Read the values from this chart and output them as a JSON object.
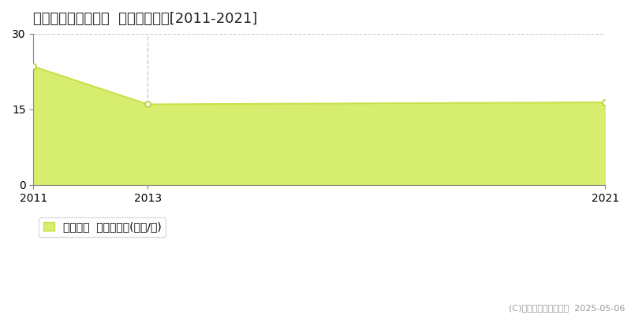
{
  "title": "各務原市蘇原早苗町  土地価格推移[2011-2021]",
  "years": [
    2011,
    2013,
    2021
  ],
  "values": [
    23.5,
    16.0,
    16.4
  ],
  "xlim": [
    2011,
    2021
  ],
  "ylim": [
    0,
    30
  ],
  "yticks": [
    0,
    15,
    30
  ],
  "xticks": [
    2011,
    2013,
    2021
  ],
  "vline_x": 2013,
  "line_color": "#c8e04a",
  "fill_color": "#d6ed6e",
  "fill_alpha": 1.0,
  "marker_color": "#ffffff",
  "marker_edge_color": "#b8cc30",
  "bg_color": "#ffffff",
  "plot_bg_color": "#ffffff",
  "grid_color": "#cccccc",
  "legend_label": "土地価格  平均坪単価(万円/坪)",
  "copyright": "(C)土地価格ドットコム  2025-05-06",
  "title_fontsize": 13,
  "axis_fontsize": 10,
  "legend_fontsize": 10,
  "copyright_fontsize": 8
}
